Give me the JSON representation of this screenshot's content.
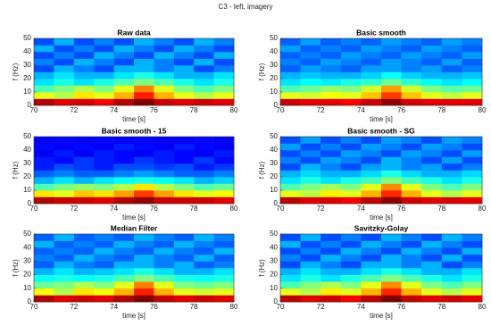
{
  "title": "C3 - left, imagery",
  "chart_data": [
    {
      "type": "heatmap",
      "title": "Raw data",
      "xlabel": "time [s]",
      "ylabel": "f (Hz)",
      "colormap": "jet",
      "xlim": [
        70,
        80
      ],
      "ylim": [
        0,
        50
      ],
      "xticks": [
        70,
        72,
        74,
        76,
        78,
        80
      ],
      "yticks": [
        0,
        10,
        20,
        30,
        40,
        50
      ],
      "xbins": [
        70,
        71,
        72,
        73,
        74,
        75,
        76,
        77,
        78,
        79,
        80
      ],
      "ybins": [
        0,
        5,
        10,
        15,
        20,
        25,
        30,
        35,
        40,
        45,
        50
      ],
      "z": [
        [
          0.95,
          0.9,
          0.92,
          0.88,
          0.95,
          1.0,
          0.93,
          0.9,
          0.92,
          0.9
        ],
        [
          0.6,
          0.55,
          0.65,
          0.6,
          0.7,
          0.85,
          0.7,
          0.6,
          0.55,
          0.6
        ],
        [
          0.45,
          0.5,
          0.55,
          0.5,
          0.6,
          0.75,
          0.6,
          0.5,
          0.45,
          0.5
        ],
        [
          0.35,
          0.4,
          0.35,
          0.4,
          0.45,
          0.5,
          0.45,
          0.4,
          0.35,
          0.4
        ],
        [
          0.3,
          0.35,
          0.3,
          0.3,
          0.35,
          0.4,
          0.35,
          0.3,
          0.3,
          0.35
        ],
        [
          0.2,
          0.3,
          0.25,
          0.2,
          0.3,
          0.3,
          0.25,
          0.3,
          0.2,
          0.25
        ],
        [
          0.25,
          0.2,
          0.3,
          0.25,
          0.2,
          0.3,
          0.25,
          0.2,
          0.3,
          0.2
        ],
        [
          0.2,
          0.25,
          0.2,
          0.3,
          0.25,
          0.2,
          0.3,
          0.25,
          0.2,
          0.3
        ],
        [
          0.3,
          0.2,
          0.25,
          0.2,
          0.3,
          0.25,
          0.2,
          0.3,
          0.25,
          0.2
        ],
        [
          0.2,
          0.3,
          0.2,
          0.25,
          0.2,
          0.3,
          0.25,
          0.2,
          0.3,
          0.25
        ]
      ]
    },
    {
      "type": "heatmap",
      "title": "Basic smooth",
      "xlabel": "time [s]",
      "ylabel": "f (Hz)",
      "colormap": "jet",
      "xlim": [
        70,
        80
      ],
      "ylim": [
        0,
        50
      ],
      "xticks": [
        70,
        72,
        74,
        76,
        78,
        80
      ],
      "yticks": [
        0,
        10,
        20,
        30,
        40,
        50
      ],
      "xbins": [
        70,
        71,
        72,
        73,
        74,
        75,
        76,
        77,
        78,
        79,
        80
      ],
      "ybins": [
        0,
        5,
        10,
        15,
        20,
        25,
        30,
        35,
        40,
        45,
        50
      ],
      "z": [
        [
          0.93,
          0.9,
          0.9,
          0.88,
          0.93,
          0.98,
          0.92,
          0.9,
          0.9,
          0.9
        ],
        [
          0.6,
          0.58,
          0.62,
          0.6,
          0.68,
          0.82,
          0.68,
          0.6,
          0.56,
          0.6
        ],
        [
          0.45,
          0.48,
          0.52,
          0.5,
          0.58,
          0.72,
          0.58,
          0.5,
          0.46,
          0.48
        ],
        [
          0.35,
          0.38,
          0.36,
          0.4,
          0.42,
          0.48,
          0.42,
          0.38,
          0.35,
          0.38
        ],
        [
          0.3,
          0.32,
          0.3,
          0.3,
          0.33,
          0.38,
          0.33,
          0.3,
          0.3,
          0.32
        ],
        [
          0.22,
          0.28,
          0.25,
          0.22,
          0.28,
          0.28,
          0.25,
          0.28,
          0.22,
          0.25
        ],
        [
          0.25,
          0.22,
          0.28,
          0.25,
          0.22,
          0.28,
          0.25,
          0.22,
          0.28,
          0.22
        ],
        [
          0.22,
          0.25,
          0.22,
          0.28,
          0.25,
          0.22,
          0.28,
          0.25,
          0.22,
          0.28
        ],
        [
          0.28,
          0.22,
          0.25,
          0.22,
          0.28,
          0.25,
          0.22,
          0.28,
          0.25,
          0.22
        ],
        [
          0.22,
          0.28,
          0.22,
          0.25,
          0.22,
          0.28,
          0.25,
          0.22,
          0.28,
          0.25
        ]
      ]
    },
    {
      "type": "heatmap",
      "title": "Basic smooth - 15",
      "xlabel": "time [s]",
      "ylabel": "f (Hz)",
      "colormap": "jet",
      "xlim": [
        70,
        80
      ],
      "ylim": [
        0,
        50
      ],
      "xticks": [
        70,
        72,
        74,
        76,
        78,
        80
      ],
      "yticks": [
        0,
        10,
        20,
        30,
        40,
        50
      ],
      "xbins": [
        70,
        71,
        72,
        73,
        74,
        75,
        76,
        77,
        78,
        79,
        80
      ],
      "ybins": [
        0,
        5,
        10,
        15,
        20,
        25,
        30,
        35,
        40,
        45,
        50
      ],
      "z": [
        [
          0.95,
          0.92,
          0.92,
          0.9,
          0.95,
          0.98,
          0.93,
          0.92,
          0.92,
          0.9
        ],
        [
          0.65,
          0.6,
          0.68,
          0.65,
          0.72,
          0.82,
          0.72,
          0.65,
          0.6,
          0.62
        ],
        [
          0.45,
          0.5,
          0.52,
          0.5,
          0.55,
          0.65,
          0.55,
          0.5,
          0.45,
          0.48
        ],
        [
          0.3,
          0.35,
          0.3,
          0.35,
          0.38,
          0.4,
          0.38,
          0.35,
          0.3,
          0.33
        ],
        [
          0.22,
          0.25,
          0.22,
          0.22,
          0.25,
          0.28,
          0.25,
          0.22,
          0.22,
          0.25
        ],
        [
          0.15,
          0.2,
          0.18,
          0.15,
          0.2,
          0.2,
          0.18,
          0.2,
          0.15,
          0.18
        ],
        [
          0.15,
          0.13,
          0.18,
          0.15,
          0.13,
          0.18,
          0.15,
          0.13,
          0.18,
          0.13
        ],
        [
          0.12,
          0.15,
          0.12,
          0.15,
          0.13,
          0.12,
          0.15,
          0.13,
          0.12,
          0.15
        ],
        [
          0.13,
          0.12,
          0.13,
          0.12,
          0.15,
          0.13,
          0.12,
          0.15,
          0.13,
          0.12
        ],
        [
          0.12,
          0.13,
          0.12,
          0.13,
          0.12,
          0.13,
          0.12,
          0.12,
          0.13,
          0.12
        ]
      ]
    },
    {
      "type": "heatmap",
      "title": "Basic smooth - SG",
      "xlabel": "time [s]",
      "ylabel": "f (Hz)",
      "colormap": "jet",
      "xlim": [
        70,
        80
      ],
      "ylim": [
        0,
        50
      ],
      "xticks": [
        70,
        72,
        74,
        76,
        78,
        80
      ],
      "yticks": [
        0,
        10,
        20,
        30,
        40,
        50
      ],
      "xbins": [
        70,
        71,
        72,
        73,
        74,
        75,
        76,
        77,
        78,
        79,
        80
      ],
      "ybins": [
        0,
        5,
        10,
        15,
        20,
        25,
        30,
        35,
        40,
        45,
        50
      ],
      "z": [
        [
          0.94,
          0.9,
          0.91,
          0.88,
          0.94,
          0.99,
          0.92,
          0.9,
          0.91,
          0.9
        ],
        [
          0.6,
          0.56,
          0.64,
          0.6,
          0.7,
          0.84,
          0.7,
          0.6,
          0.55,
          0.6
        ],
        [
          0.45,
          0.5,
          0.54,
          0.5,
          0.6,
          0.74,
          0.6,
          0.5,
          0.45,
          0.5
        ],
        [
          0.35,
          0.4,
          0.35,
          0.4,
          0.44,
          0.5,
          0.44,
          0.4,
          0.35,
          0.4
        ],
        [
          0.3,
          0.34,
          0.3,
          0.3,
          0.34,
          0.4,
          0.34,
          0.3,
          0.3,
          0.34
        ],
        [
          0.2,
          0.3,
          0.25,
          0.2,
          0.28,
          0.3,
          0.25,
          0.28,
          0.2,
          0.25
        ],
        [
          0.25,
          0.2,
          0.28,
          0.25,
          0.2,
          0.3,
          0.25,
          0.2,
          0.28,
          0.2
        ],
        [
          0.2,
          0.25,
          0.2,
          0.28,
          0.25,
          0.2,
          0.28,
          0.25,
          0.2,
          0.28
        ],
        [
          0.28,
          0.2,
          0.25,
          0.2,
          0.28,
          0.25,
          0.2,
          0.28,
          0.25,
          0.2
        ],
        [
          0.2,
          0.28,
          0.2,
          0.25,
          0.2,
          0.28,
          0.25,
          0.2,
          0.28,
          0.25
        ]
      ]
    },
    {
      "type": "heatmap",
      "title": "Median Filter",
      "xlabel": "time [s]",
      "ylabel": "f (Hz)",
      "colormap": "jet",
      "xlim": [
        70,
        80
      ],
      "ylim": [
        0,
        50
      ],
      "xticks": [
        70,
        72,
        74,
        76,
        78,
        80
      ],
      "yticks": [
        0,
        10,
        20,
        30,
        40,
        50
      ],
      "xbins": [
        70,
        71,
        72,
        73,
        74,
        75,
        76,
        77,
        78,
        79,
        80
      ],
      "ybins": [
        0,
        5,
        10,
        15,
        20,
        25,
        30,
        35,
        40,
        45,
        50
      ],
      "z": [
        [
          0.95,
          0.9,
          0.92,
          0.9,
          0.95,
          1.0,
          0.93,
          0.9,
          0.92,
          0.9
        ],
        [
          0.62,
          0.55,
          0.65,
          0.62,
          0.7,
          0.85,
          0.7,
          0.6,
          0.58,
          0.6
        ],
        [
          0.48,
          0.5,
          0.55,
          0.5,
          0.6,
          0.75,
          0.6,
          0.5,
          0.48,
          0.5
        ],
        [
          0.38,
          0.4,
          0.38,
          0.4,
          0.45,
          0.5,
          0.45,
          0.4,
          0.38,
          0.4
        ],
        [
          0.3,
          0.35,
          0.3,
          0.32,
          0.35,
          0.4,
          0.35,
          0.3,
          0.3,
          0.35
        ],
        [
          0.22,
          0.3,
          0.25,
          0.22,
          0.3,
          0.3,
          0.25,
          0.3,
          0.22,
          0.25
        ],
        [
          0.25,
          0.22,
          0.3,
          0.25,
          0.22,
          0.3,
          0.25,
          0.22,
          0.3,
          0.22
        ],
        [
          0.22,
          0.25,
          0.22,
          0.3,
          0.25,
          0.22,
          0.3,
          0.25,
          0.22,
          0.3
        ],
        [
          0.3,
          0.22,
          0.25,
          0.22,
          0.3,
          0.25,
          0.22,
          0.3,
          0.25,
          0.22
        ],
        [
          0.22,
          0.3,
          0.22,
          0.25,
          0.22,
          0.3,
          0.25,
          0.22,
          0.3,
          0.25
        ]
      ]
    },
    {
      "type": "heatmap",
      "title": "Savitzky-Golay",
      "xlabel": "time [s]",
      "ylabel": "f (Hz)",
      "colormap": "jet",
      "xlim": [
        70,
        80
      ],
      "ylim": [
        0,
        50
      ],
      "xticks": [
        70,
        72,
        74,
        76,
        78,
        80
      ],
      "yticks": [
        0,
        10,
        20,
        30,
        40,
        50
      ],
      "xbins": [
        70,
        71,
        72,
        73,
        74,
        75,
        76,
        77,
        78,
        79,
        80
      ],
      "ybins": [
        0,
        5,
        10,
        15,
        20,
        25,
        30,
        35,
        40,
        45,
        50
      ],
      "z": [
        [
          0.94,
          0.9,
          0.92,
          0.88,
          0.94,
          1.0,
          0.93,
          0.9,
          0.92,
          0.9
        ],
        [
          0.6,
          0.55,
          0.64,
          0.6,
          0.7,
          0.84,
          0.7,
          0.6,
          0.55,
          0.6
        ],
        [
          0.45,
          0.5,
          0.55,
          0.5,
          0.6,
          0.74,
          0.6,
          0.5,
          0.45,
          0.5
        ],
        [
          0.35,
          0.4,
          0.35,
          0.4,
          0.45,
          0.5,
          0.45,
          0.4,
          0.35,
          0.4
        ],
        [
          0.3,
          0.35,
          0.3,
          0.3,
          0.35,
          0.4,
          0.35,
          0.3,
          0.3,
          0.35
        ],
        [
          0.2,
          0.3,
          0.25,
          0.2,
          0.3,
          0.3,
          0.25,
          0.3,
          0.2,
          0.25
        ],
        [
          0.25,
          0.2,
          0.3,
          0.25,
          0.2,
          0.3,
          0.25,
          0.2,
          0.3,
          0.2
        ],
        [
          0.2,
          0.25,
          0.2,
          0.3,
          0.25,
          0.2,
          0.3,
          0.25,
          0.2,
          0.3
        ],
        [
          0.3,
          0.2,
          0.25,
          0.2,
          0.3,
          0.25,
          0.2,
          0.3,
          0.25,
          0.2
        ],
        [
          0.2,
          0.3,
          0.2,
          0.25,
          0.2,
          0.3,
          0.25,
          0.2,
          0.3,
          0.25
        ]
      ]
    }
  ]
}
